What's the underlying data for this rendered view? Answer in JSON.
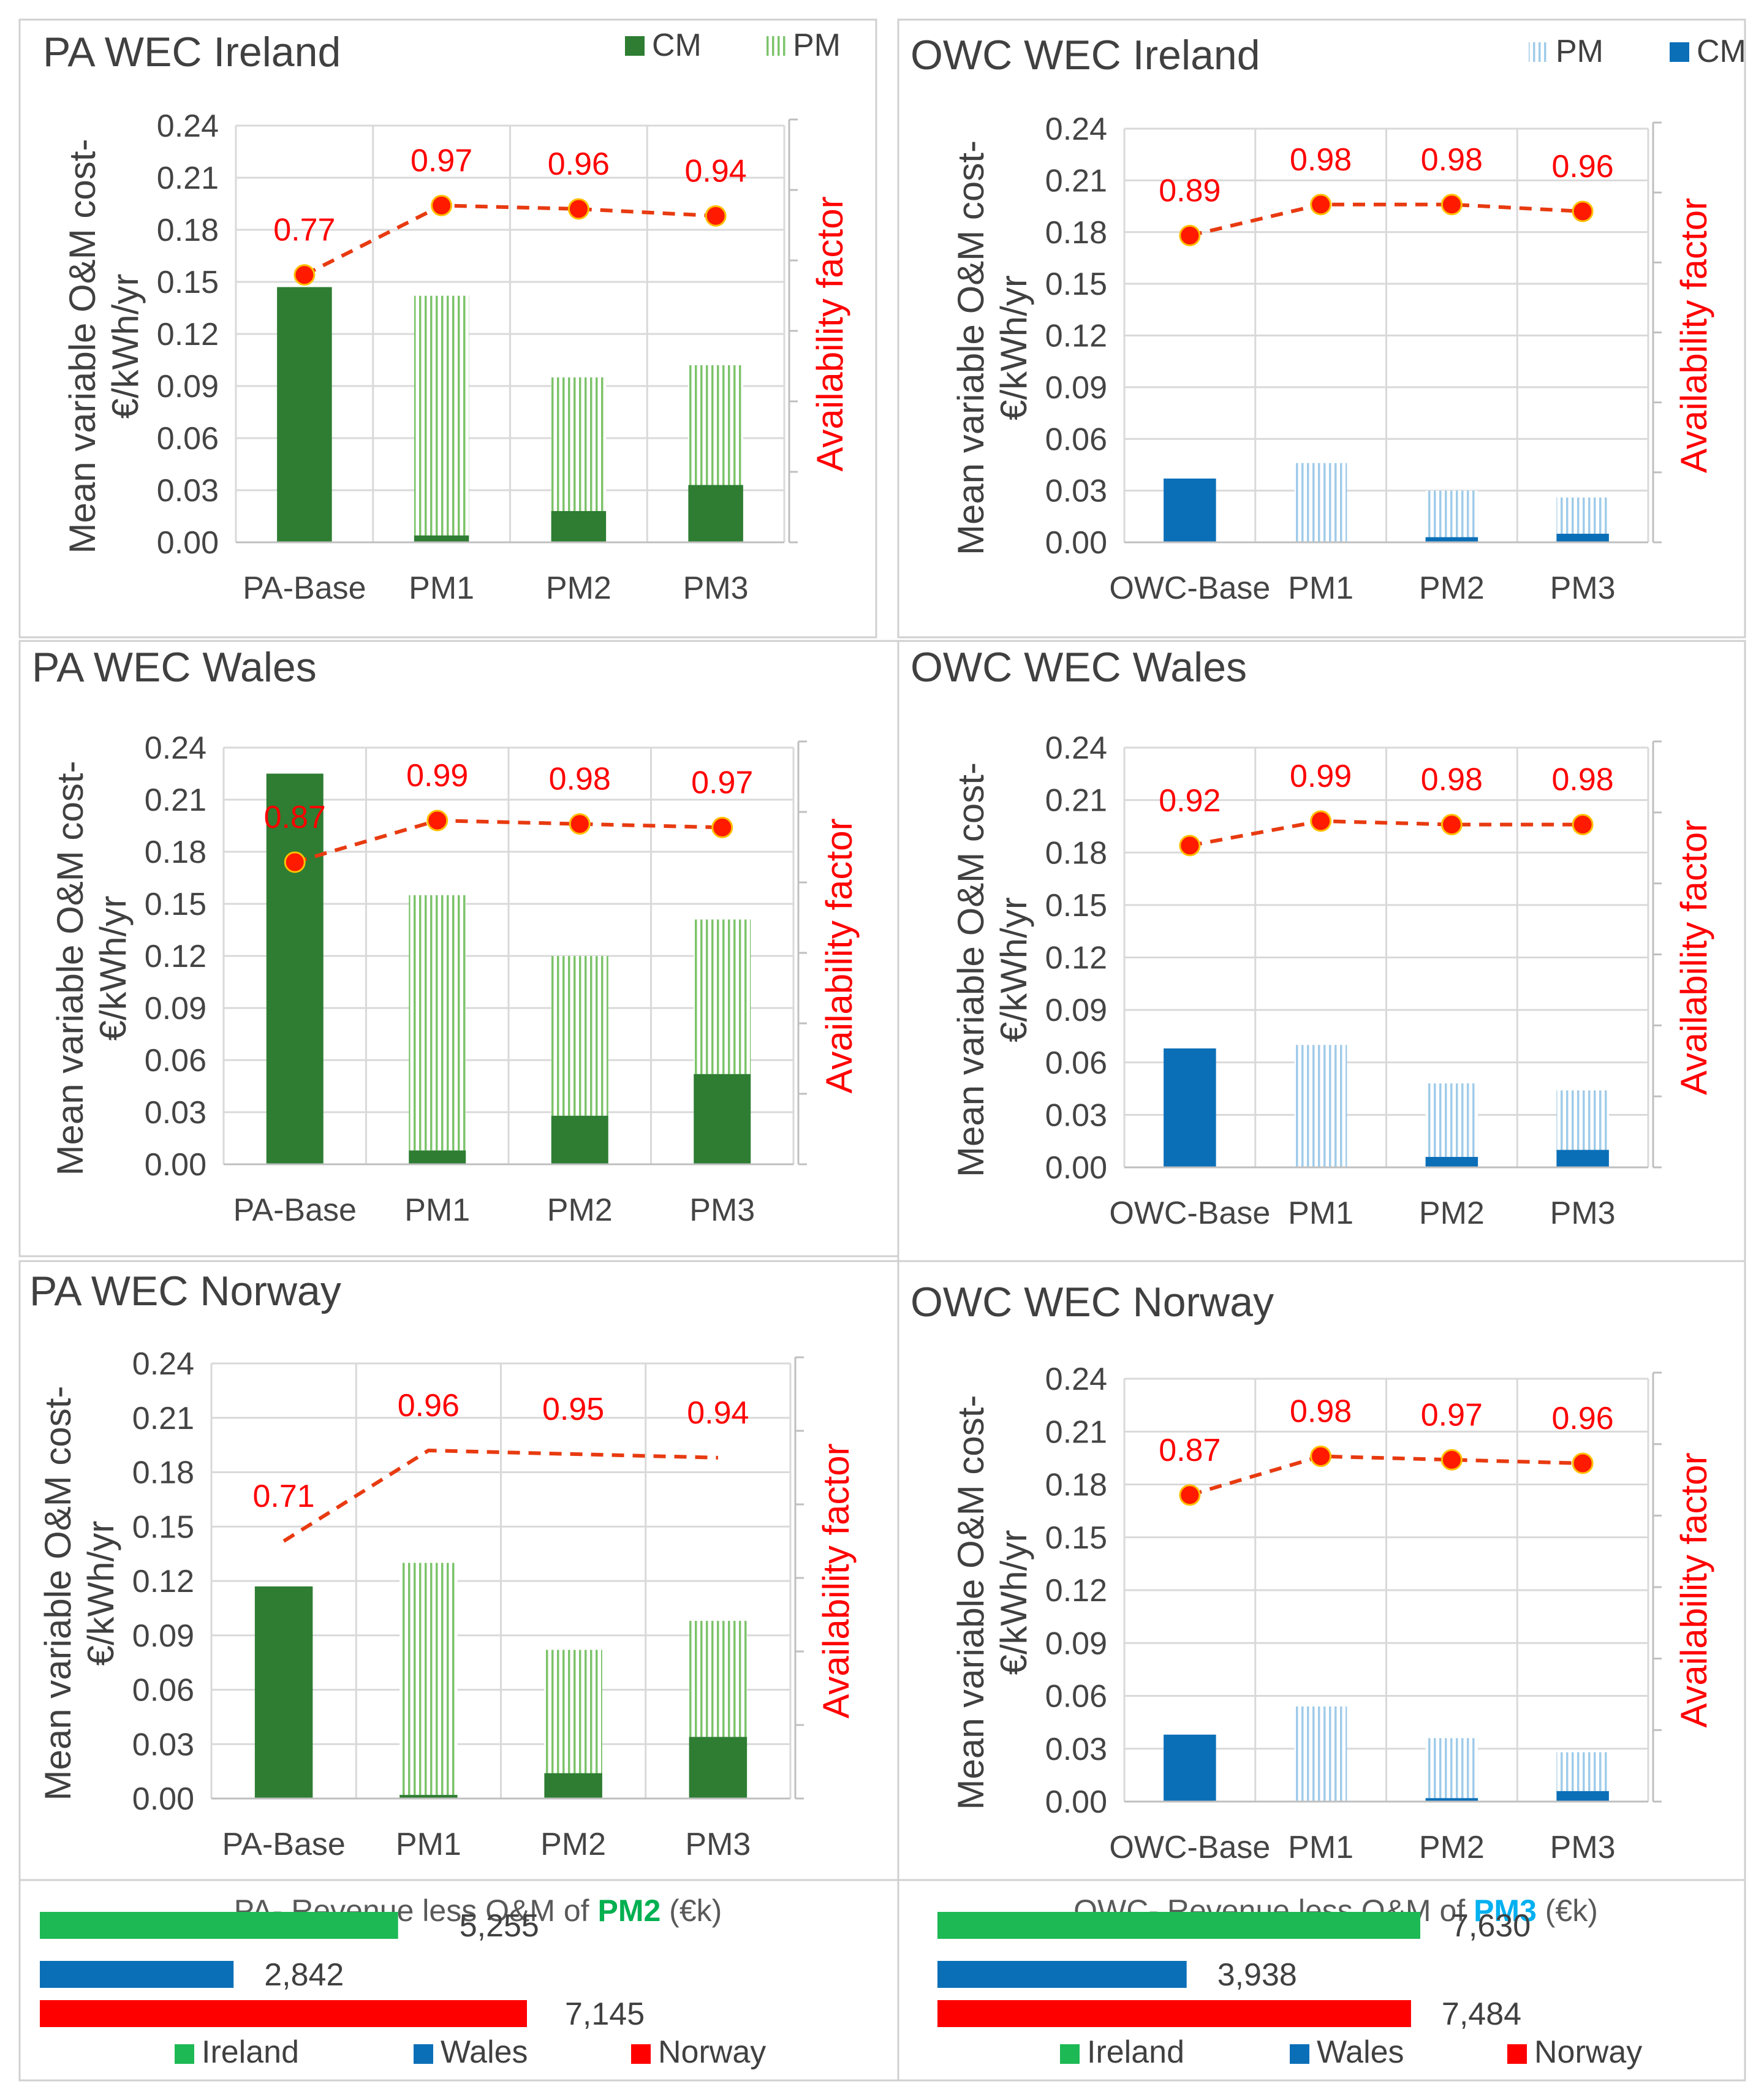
{
  "colors": {
    "pa_cm": "#2e7d32",
    "pa_pm": "#7cc36a",
    "owc_cm": "#0b6fb8",
    "owc_pm": "#9fcbea",
    "avail_line": "#e83a10",
    "avail_label": "#ff0000",
    "grid": "#d9d9d9",
    "axis_text": "#444444",
    "ireland": "#1db954",
    "wales": "#0b6fb8",
    "norway": "#ff0000",
    "pm2_highlight": "#00b050",
    "pm3_highlight": "#00b0f0"
  },
  "y_axis": {
    "label_line1": "Mean variable O&M cost-",
    "label_line2": "€/kWh/yr",
    "right_label": "Availability factor",
    "ticks": [
      "0.00",
      "0.03",
      "0.06",
      "0.09",
      "0.12",
      "0.15",
      "0.18",
      "0.21",
      "0.24"
    ]
  },
  "chart_data": [
    {
      "id": "pa_ireland",
      "type": "bar",
      "title": "PA WEC Ireland",
      "stacked": true,
      "series_style": "pa",
      "legend_entries": [
        "CM",
        "PM"
      ],
      "categories": [
        "PA-Base",
        "PM1",
        "PM2",
        "PM3"
      ],
      "series": [
        {
          "name": "CM",
          "values": [
            0.147,
            0.004,
            0.018,
            0.033
          ]
        },
        {
          "name": "PM",
          "values": [
            0,
            0.138,
            0.077,
            0.069
          ]
        }
      ],
      "availability": {
        "values": [
          0.77,
          0.97,
          0.96,
          0.94
        ],
        "labels": [
          "0.77",
          "0.97",
          "0.96",
          "0.94"
        ],
        "markers": true
      },
      "ylim": [
        0,
        0.24
      ],
      "ylabel": "Mean variable O&M cost- €/kWh/yr",
      "y2label": "Availability factor"
    },
    {
      "id": "owc_ireland",
      "type": "bar",
      "title": "OWC WEC Ireland",
      "stacked": true,
      "series_style": "owc",
      "legend_entries": [
        "PM",
        "CM"
      ],
      "categories": [
        "OWC-Base",
        "PM1",
        "PM2",
        "PM3"
      ],
      "series": [
        {
          "name": "CM",
          "values": [
            0.037,
            0,
            0.003,
            0.005
          ]
        },
        {
          "name": "PM",
          "values": [
            0,
            0.046,
            0.027,
            0.021
          ]
        }
      ],
      "availability": {
        "values": [
          0.89,
          0.98,
          0.98,
          0.96
        ],
        "labels": [
          "0.89",
          "0.98",
          "0.98",
          "0.96"
        ],
        "markers": true
      },
      "ylim": [
        0,
        0.24
      ],
      "ylabel": "Mean variable O&M cost- €/kWh/yr",
      "y2label": "Availability factor"
    },
    {
      "id": "pa_wales",
      "type": "bar",
      "title": "PA WEC Wales",
      "stacked": true,
      "series_style": "pa",
      "legend_entries": [],
      "categories": [
        "PA-Base",
        "PM1",
        "PM2",
        "PM3"
      ],
      "series": [
        {
          "name": "CM",
          "values": [
            0.225,
            0.008,
            0.028,
            0.052
          ]
        },
        {
          "name": "PM",
          "values": [
            0,
            0.147,
            0.092,
            0.089
          ]
        }
      ],
      "availability": {
        "values": [
          0.87,
          0.99,
          0.98,
          0.97
        ],
        "labels": [
          "0.87",
          "0.99",
          "0.98",
          "0.97"
        ],
        "markers": true
      },
      "ylim": [
        0,
        0.24
      ],
      "ylabel": "Mean variable O&M cost- €/kWh/yr",
      "y2label": "Availability factor"
    },
    {
      "id": "owc_wales",
      "type": "bar",
      "title": "OWC WEC Wales",
      "stacked": true,
      "series_style": "owc",
      "legend_entries": [],
      "categories": [
        "OWC-Base",
        "PM1",
        "PM2",
        "PM3"
      ],
      "series": [
        {
          "name": "CM",
          "values": [
            0.068,
            0,
            0.006,
            0.01
          ]
        },
        {
          "name": "PM",
          "values": [
            0,
            0.07,
            0.042,
            0.034
          ]
        }
      ],
      "availability": {
        "values": [
          0.92,
          0.99,
          0.98,
          0.98
        ],
        "labels": [
          "0.92",
          "0.99",
          "0.98",
          "0.98"
        ],
        "markers": true
      },
      "ylim": [
        0,
        0.24
      ],
      "ylabel": "Mean variable O&M cost- €/kWh/yr",
      "y2label": "Availability factor"
    },
    {
      "id": "pa_norway",
      "type": "bar",
      "title": "PA WEC Norway",
      "stacked": true,
      "series_style": "pa",
      "legend_entries": [],
      "categories": [
        "PA-Base",
        "PM1",
        "PM2",
        "PM3"
      ],
      "series": [
        {
          "name": "CM",
          "values": [
            0.117,
            0.002,
            0.014,
            0.034
          ]
        },
        {
          "name": "PM",
          "values": [
            0,
            0.128,
            0.068,
            0.064
          ]
        }
      ],
      "availability": {
        "values": [
          0.71,
          0.96,
          0.95,
          0.94
        ],
        "labels": [
          "0.71",
          "0.96",
          "0.95",
          "0.94"
        ],
        "markers": false
      },
      "ylim": [
        0,
        0.24
      ],
      "ylabel": "Mean variable O&M cost- €/kWh/yr",
      "y2label": "Availability factor"
    },
    {
      "id": "owc_norway",
      "type": "bar",
      "title": "OWC WEC Norway",
      "stacked": true,
      "series_style": "owc",
      "legend_entries": [],
      "categories": [
        "OWC-Base",
        "PM1",
        "PM2",
        "PM3"
      ],
      "series": [
        {
          "name": "CM",
          "values": [
            0.038,
            0,
            0.002,
            0.006
          ]
        },
        {
          "name": "PM",
          "values": [
            0,
            0.054,
            0.034,
            0.022
          ]
        }
      ],
      "availability": {
        "values": [
          0.87,
          0.98,
          0.97,
          0.96
        ],
        "labels": [
          "0.87",
          "0.98",
          "0.97",
          "0.96"
        ],
        "markers": true
      },
      "ylim": [
        0,
        0.24
      ],
      "ylabel": "Mean variable O&M cost- €/kWh/yr",
      "y2label": "Availability factor"
    },
    {
      "id": "pa_revenue",
      "type": "bar",
      "orientation": "horizontal",
      "title_prefix": "PA- Revenue less O&M of ",
      "title_highlight": "PM2",
      "title_suffix": " (€k)",
      "categories": [
        "Ireland",
        "Wales",
        "Norway"
      ],
      "values": [
        5255,
        2842,
        7145
      ],
      "value_labels": [
        "5,255",
        "2,842",
        "7,145"
      ],
      "xmax": 8000
    },
    {
      "id": "owc_revenue",
      "type": "bar",
      "orientation": "horizontal",
      "title_prefix": "OWC- Revenue less O&M of ",
      "title_highlight": "PM3",
      "title_suffix": " (€k)",
      "categories": [
        "Ireland",
        "Wales",
        "Norway"
      ],
      "values": [
        7630,
        3938,
        7484
      ],
      "value_labels": [
        "7,630",
        "3,938",
        "7,484"
      ],
      "xmax": 8000
    }
  ]
}
